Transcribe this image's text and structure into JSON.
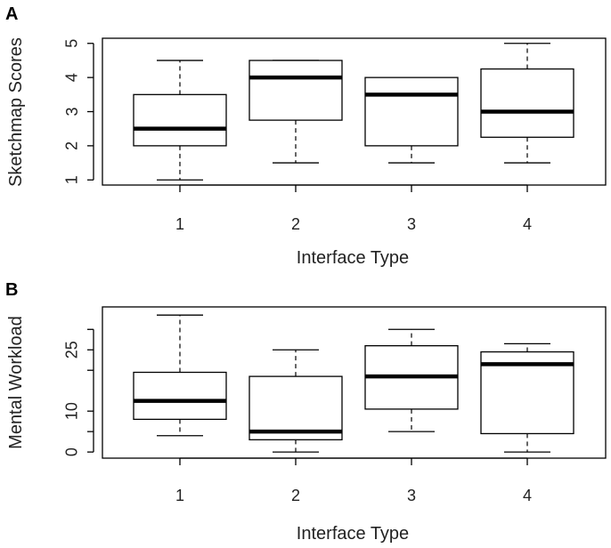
{
  "chart_data": [
    {
      "panel": "A",
      "type": "box",
      "categories": [
        "1",
        "2",
        "3",
        "4"
      ],
      "xlabel": "Interface Type",
      "ylabel": "Sketchmap Scores",
      "yticks": [
        "1",
        "2",
        "3",
        "4",
        "5"
      ],
      "ylim": [
        0.85,
        5.15
      ],
      "boxes": [
        {
          "min": 1.0,
          "q1": 2.0,
          "median": 2.5,
          "q3": 3.5,
          "max": 4.5
        },
        {
          "min": 1.5,
          "q1": 2.75,
          "median": 4.0,
          "q3": 4.5,
          "max": 4.5
        },
        {
          "min": 1.5,
          "q1": 2.0,
          "median": 3.5,
          "q3": 4.0,
          "max": 4.0
        },
        {
          "min": 1.5,
          "q1": 2.25,
          "median": 3.0,
          "q3": 4.25,
          "max": 5.0
        }
      ]
    },
    {
      "panel": "B",
      "type": "box",
      "categories": [
        "1",
        "2",
        "3",
        "4"
      ],
      "xlabel": "Interface Type",
      "ylabel": "Mental Workload",
      "yticks": [
        "0",
        "",
        "10",
        "",
        "25",
        ""
      ],
      "ytick_values": [
        0,
        5,
        10,
        20,
        25,
        30
      ],
      "ylim": [
        -1.5,
        35.5
      ],
      "boxes": [
        {
          "min": 4,
          "q1": 8,
          "median": 12.5,
          "q3": 19.5,
          "max": 33.5
        },
        {
          "min": 0,
          "q1": 3,
          "median": 5,
          "q3": 18.5,
          "max": 25
        },
        {
          "min": 5,
          "q1": 10.5,
          "median": 18.5,
          "q3": 26,
          "max": 30
        },
        {
          "min": 0,
          "q1": 4.5,
          "median": 21.5,
          "q3": 24.5,
          "max": 26.5
        }
      ]
    }
  ]
}
